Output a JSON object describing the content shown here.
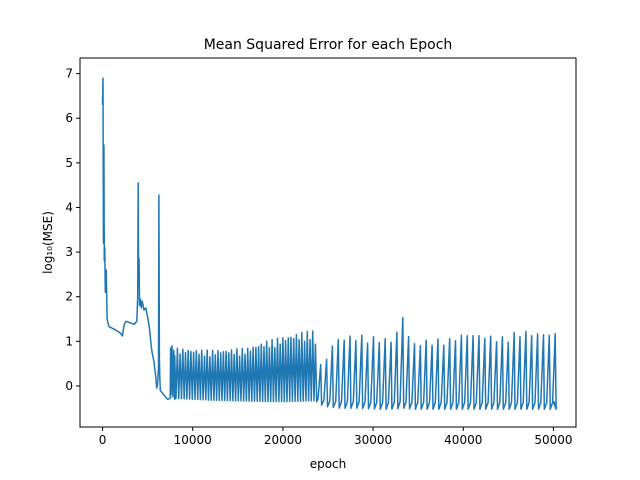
{
  "chart_data": {
    "type": "line",
    "title": "Mean Squared Error for each Epoch",
    "xlabel": "epoch",
    "ylabel": "log₁₀(MSE)",
    "xlim": [
      -2500,
      52500
    ],
    "ylim": [
      -0.92,
      7.35
    ],
    "grid": false,
    "x_ticks": [
      0,
      10000,
      20000,
      30000,
      40000,
      50000
    ],
    "x_tick_labels": [
      "0",
      "10000",
      "20000",
      "30000",
      "40000",
      "50000"
    ],
    "y_ticks": [
      0,
      1,
      2,
      3,
      4,
      5,
      6,
      7
    ],
    "y_tick_labels": [
      "0",
      "1",
      "2",
      "3",
      "4",
      "5",
      "6",
      "7"
    ],
    "series": [
      {
        "name": "",
        "color": "#1f77b4",
        "x": [
          0,
          50,
          100,
          150,
          200,
          250,
          300,
          400,
          500,
          700,
          1000,
          1500,
          2000,
          2200,
          2400,
          2600,
          3000,
          3500,
          3800,
          3900,
          3950,
          4000,
          4050,
          4100,
          4200,
          4300,
          4400,
          4600,
          4800,
          5000,
          5200,
          5400,
          5500,
          5700,
          5900,
          6000,
          6100,
          6200,
          6250,
          6300,
          6350,
          6400,
          6600,
          6800,
          7000,
          7200,
          7500,
          7550,
          7600,
          7700,
          7800,
          7900,
          8000
        ],
        "y": [
          6.3,
          6.9,
          3.2,
          5.4,
          2.8,
          3.1,
          2.1,
          2.6,
          1.5,
          1.33,
          1.3,
          1.25,
          1.18,
          1.12,
          1.38,
          1.45,
          1.42,
          1.38,
          1.45,
          2.0,
          4.55,
          2.2,
          2.85,
          1.8,
          1.95,
          1.75,
          1.9,
          1.7,
          1.75,
          1.55,
          1.3,
          0.9,
          0.75,
          0.55,
          0.2,
          -0.05,
          0.05,
          0.4,
          4.28,
          0.6,
          0.2,
          -0.1,
          -0.15,
          -0.2,
          -0.25,
          -0.3,
          -0.28,
          0.85,
          -0.2,
          0.9,
          -0.25,
          0.8,
          -0.3
        ]
      }
    ],
    "oscillation_envelope": {
      "x": [
        8000,
        10000,
        12000,
        14000,
        16000,
        18000,
        20000,
        22000,
        23500,
        24000,
        25000,
        26000,
        28000,
        30000,
        32000,
        33000,
        34000,
        36000,
        38000,
        40000,
        42000,
        44000,
        46000,
        48000,
        50000
      ],
      "upper": [
        0.85,
        0.82,
        0.8,
        0.82,
        0.85,
        1.0,
        1.1,
        1.2,
        1.25,
        0.3,
        0.9,
        1.1,
        1.15,
        1.1,
        1.05,
        1.6,
        0.95,
        1.05,
        1.05,
        1.2,
        1.15,
        1.1,
        1.25,
        1.2,
        1.2
      ],
      "lower": [
        -0.28,
        -0.3,
        -0.32,
        -0.33,
        -0.34,
        -0.35,
        -0.35,
        -0.34,
        -0.33,
        -0.45,
        -0.48,
        -0.5,
        -0.5,
        -0.52,
        -0.52,
        -0.5,
        -0.52,
        -0.52,
        -0.52,
        -0.52,
        -0.52,
        -0.52,
        -0.52,
        -0.52,
        -0.52
      ],
      "period_dense": 300,
      "period_sparse": 650,
      "transition_x": 23800
    },
    "tail": {
      "x": [
        50000,
        50300
      ],
      "y": [
        -0.35,
        -0.42
      ]
    }
  }
}
